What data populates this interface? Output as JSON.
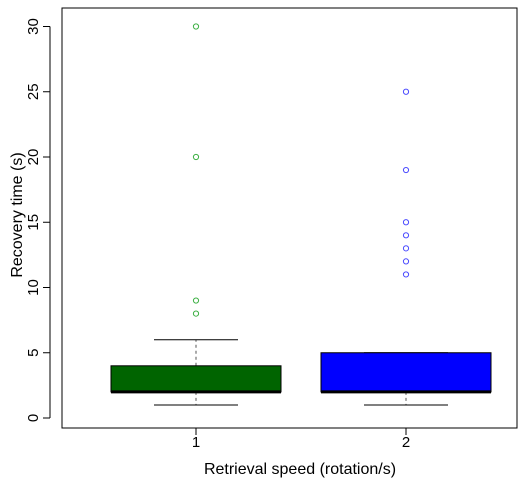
{
  "chart_data": {
    "type": "boxplot",
    "title": "",
    "xlabel": "Retrieval speed (rotation/s)",
    "ylabel": "Recovery time (s)",
    "ylim": [
      0,
      31
    ],
    "yticks": [
      "0",
      "5",
      "10",
      "15",
      "20",
      "25",
      "30"
    ],
    "categories": [
      "1",
      "2"
    ],
    "grid": false,
    "legend": "none",
    "series": [
      {
        "category": "1",
        "color": "#006400",
        "outlier_color": "#3cb043",
        "whisker_low": 1,
        "q1": 2,
        "median": 2,
        "q3": 4,
        "whisker_high": 6,
        "outliers": [
          8,
          9,
          20,
          30
        ]
      },
      {
        "category": "2",
        "color": "#0000ff",
        "outlier_color": "#4a4aff",
        "whisker_low": 1,
        "q1": 2,
        "median": 2,
        "q3": 5,
        "whisker_high": 5,
        "outliers": [
          11,
          12,
          13,
          14,
          15,
          19,
          25
        ]
      }
    ]
  }
}
